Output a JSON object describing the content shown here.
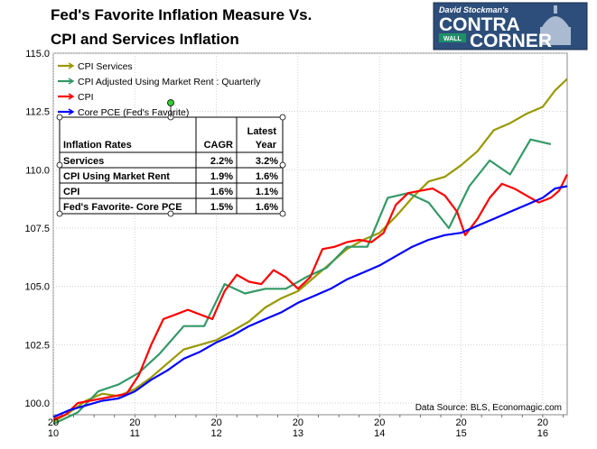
{
  "header": {
    "title_line1": "Fed's Favorite Inflation Measure Vs.",
    "title_line2": "CPI and Services Inflation"
  },
  "logo": {
    "small_text": "David Stockman's",
    "word1": "CONTRA",
    "word2": "CORNER",
    "badge": "WALL"
  },
  "source": "Data Source: BLS, Economagic.com",
  "table": {
    "header": {
      "label": "Inflation Rates",
      "cagr": "CAGR",
      "latest_line1": "Latest",
      "latest_line2": "Year"
    },
    "rows": [
      {
        "label": "Services",
        "cagr": "2.2%",
        "latest": "3.2%"
      },
      {
        "label": "CPI Using Market Rent",
        "cagr": "1.9%",
        "latest": "1.6%"
      },
      {
        "label": "CPI",
        "cagr": "1.6%",
        "latest": "1.1%"
      },
      {
        "label": "Fed's Favorite- Core PCE",
        "cagr": "1.5%",
        "latest": "1.6%"
      }
    ]
  },
  "chart_data": {
    "type": "line",
    "ylim": [
      99.5,
      115.0
    ],
    "xlim": [
      2010.0,
      2016.3
    ],
    "yticks": [
      "100.0",
      "102.5",
      "105.0",
      "107.5",
      "110.0",
      "112.5",
      "115.0"
    ],
    "xticks": [
      {
        "line1": "20",
        "line2": "10"
      },
      {
        "line1": "20",
        "line2": "11"
      },
      {
        "line1": "20",
        "line2": "12"
      },
      {
        "line1": "20",
        "line2": "13"
      },
      {
        "line1": "20",
        "line2": "14"
      },
      {
        "line1": "20",
        "line2": "15"
      },
      {
        "line1": "20",
        "line2": "16"
      }
    ],
    "xtick_values": [
      2010,
      2011,
      2012,
      2013,
      2014,
      2015,
      2016
    ],
    "grid": true,
    "legend_position": "top-left",
    "series": [
      {
        "name": "CPI Services",
        "color": "#999900",
        "x": [
          2010.0,
          2010.2,
          2010.4,
          2010.6,
          2010.8,
          2011.0,
          2011.2,
          2011.4,
          2011.6,
          2011.8,
          2012.0,
          2012.2,
          2012.4,
          2012.6,
          2012.8,
          2013.0,
          2013.2,
          2013.4,
          2013.6,
          2013.8,
          2014.0,
          2014.2,
          2014.4,
          2014.6,
          2014.8,
          2015.0,
          2015.2,
          2015.4,
          2015.6,
          2015.8,
          2016.0,
          2016.15,
          2016.3
        ],
        "y": [
          99.2,
          99.6,
          100.1,
          100.4,
          100.3,
          100.6,
          101.1,
          101.7,
          102.3,
          102.5,
          102.7,
          103.1,
          103.5,
          104.1,
          104.5,
          104.8,
          105.4,
          106.0,
          106.6,
          107.0,
          107.3,
          108.0,
          108.8,
          109.5,
          109.7,
          110.2,
          110.8,
          111.7,
          112.0,
          112.4,
          112.7,
          113.4,
          113.9
        ]
      },
      {
        "name": "CPI Adjusted Using Market Rent : Quarterly",
        "color": "#339966",
        "x": [
          2010.0,
          2010.3,
          2010.55,
          2010.8,
          2011.05,
          2011.3,
          2011.6,
          2011.85,
          2012.1,
          2012.35,
          2012.6,
          2012.85,
          2013.1,
          2013.35,
          2013.6,
          2013.85,
          2014.1,
          2014.35,
          2014.6,
          2014.85,
          2015.1,
          2015.35,
          2015.6,
          2015.85,
          2016.1
        ],
        "y": [
          99.1,
          99.6,
          100.5,
          100.8,
          101.3,
          102.1,
          103.3,
          103.3,
          105.1,
          104.7,
          104.9,
          104.9,
          105.4,
          105.8,
          106.7,
          106.7,
          108.8,
          109.0,
          108.6,
          107.5,
          109.3,
          110.4,
          109.8,
          111.3,
          111.1
        ]
      },
      {
        "name": "CPI",
        "color": "#ff0000",
        "x": [
          2010.0,
          2010.15,
          2010.3,
          2010.45,
          2010.6,
          2010.75,
          2010.9,
          2011.05,
          2011.2,
          2011.35,
          2011.5,
          2011.65,
          2011.8,
          2011.95,
          2012.1,
          2012.25,
          2012.4,
          2012.55,
          2012.7,
          2012.85,
          2013.0,
          2013.15,
          2013.3,
          2013.45,
          2013.6,
          2013.75,
          2013.9,
          2014.05,
          2014.2,
          2014.35,
          2014.5,
          2014.65,
          2014.8,
          2014.95,
          2015.05,
          2015.2,
          2015.35,
          2015.5,
          2015.65,
          2015.8,
          2015.95,
          2016.1,
          2016.2,
          2016.3
        ],
        "y": [
          99.3,
          99.5,
          100.0,
          100.1,
          100.2,
          100.3,
          100.4,
          101.2,
          102.5,
          103.6,
          103.8,
          104.0,
          103.8,
          103.6,
          104.8,
          105.5,
          105.2,
          105.1,
          105.7,
          105.4,
          104.9,
          105.4,
          106.6,
          106.7,
          106.9,
          107.0,
          106.9,
          107.3,
          108.5,
          109.0,
          109.1,
          109.2,
          108.9,
          108.2,
          107.2,
          107.9,
          108.8,
          109.4,
          109.2,
          108.9,
          108.6,
          108.8,
          109.1,
          109.8
        ]
      },
      {
        "name": "Core PCE (Fed's Favorite)",
        "color": "#0000ff",
        "x": [
          2010.0,
          2010.2,
          2010.4,
          2010.6,
          2010.8,
          2011.0,
          2011.2,
          2011.4,
          2011.6,
          2011.8,
          2012.0,
          2012.2,
          2012.4,
          2012.6,
          2012.8,
          2013.0,
          2013.2,
          2013.4,
          2013.6,
          2013.8,
          2014.0,
          2014.2,
          2014.4,
          2014.6,
          2014.8,
          2015.0,
          2015.2,
          2015.4,
          2015.6,
          2015.8,
          2016.0,
          2016.15,
          2016.3
        ],
        "y": [
          99.4,
          99.7,
          99.9,
          100.1,
          100.2,
          100.5,
          101.0,
          101.4,
          101.9,
          102.2,
          102.6,
          102.9,
          103.3,
          103.6,
          103.9,
          104.3,
          104.6,
          104.9,
          105.3,
          105.6,
          105.9,
          106.3,
          106.7,
          107.0,
          107.2,
          107.3,
          107.6,
          107.9,
          108.2,
          108.5,
          108.8,
          109.2,
          109.3
        ]
      }
    ]
  }
}
